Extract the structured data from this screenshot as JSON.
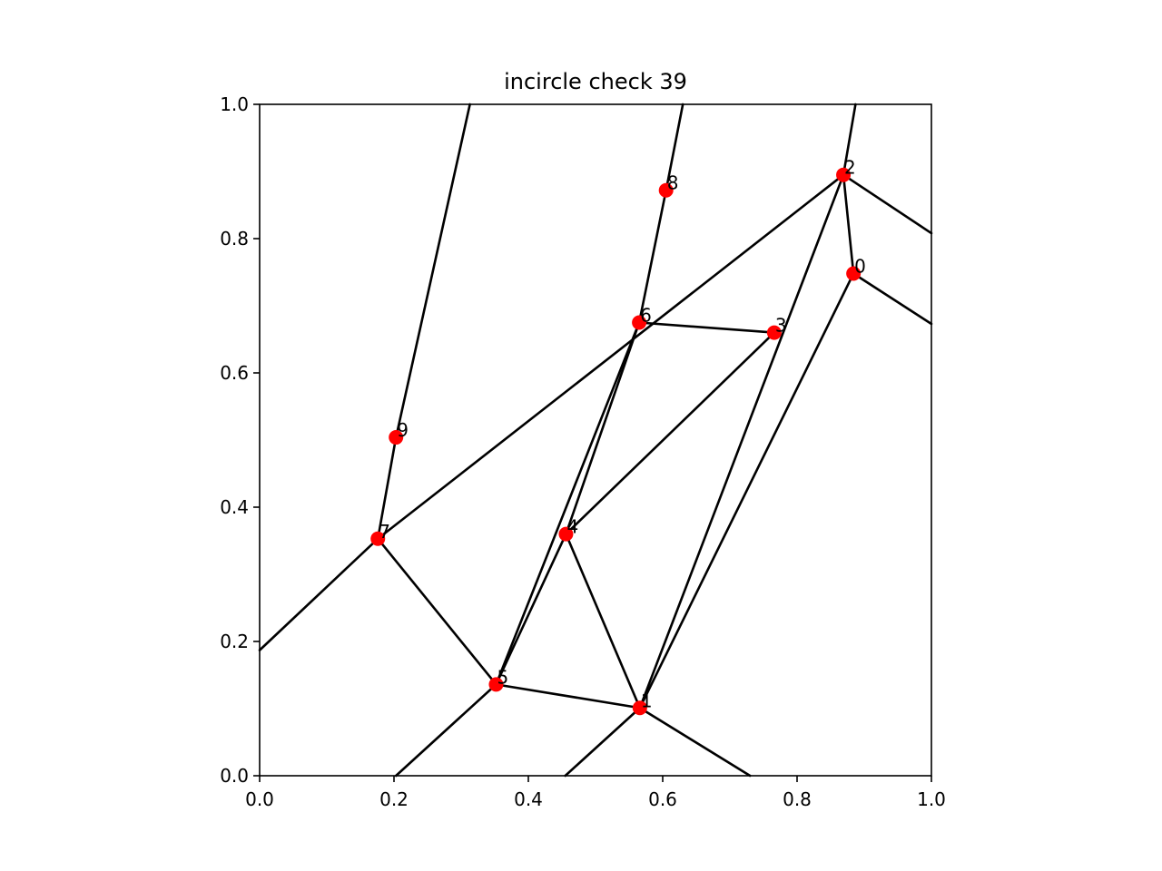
{
  "chart_data": {
    "type": "scatter",
    "title": "incircle check 39",
    "xlabel": "",
    "ylabel": "",
    "xlim": [
      0.0,
      1.0
    ],
    "ylim": [
      0.0,
      1.0
    ],
    "grid": false,
    "x_ticks": [
      "0.0",
      "0.2",
      "0.4",
      "0.6",
      "0.8",
      "1.0"
    ],
    "y_ticks": [
      "0.0",
      "0.2",
      "0.4",
      "0.6",
      "0.8",
      "1.0"
    ],
    "point_color": "#ff0000",
    "line_color": "#000000",
    "points": [
      {
        "label": "0",
        "x": 0.884,
        "y": 0.748
      },
      {
        "label": "1",
        "x": 0.566,
        "y": 0.101
      },
      {
        "label": "2",
        "x": 0.869,
        "y": 0.895
      },
      {
        "label": "3",
        "x": 0.766,
        "y": 0.66
      },
      {
        "label": "4",
        "x": 0.456,
        "y": 0.36
      },
      {
        "label": "5",
        "x": 0.352,
        "y": 0.136
      },
      {
        "label": "6",
        "x": 0.565,
        "y": 0.675
      },
      {
        "label": "7",
        "x": 0.176,
        "y": 0.353
      },
      {
        "label": "8",
        "x": 0.605,
        "y": 0.872
      },
      {
        "label": "9",
        "x": 0.203,
        "y": 0.504
      }
    ],
    "segments": [
      [
        0.176,
        0.353,
        0.869,
        0.895
      ],
      [
        0.869,
        0.895,
        0.884,
        0.748
      ],
      [
        0.884,
        0.748,
        0.566,
        0.101
      ],
      [
        0.566,
        0.101,
        0.352,
        0.136
      ],
      [
        0.352,
        0.136,
        0.176,
        0.353
      ],
      [
        0.565,
        0.675,
        0.766,
        0.66
      ],
      [
        0.766,
        0.66,
        0.456,
        0.36
      ],
      [
        0.456,
        0.36,
        0.565,
        0.675
      ],
      [
        0.565,
        0.675,
        0.352,
        0.136
      ],
      [
        0.352,
        0.136,
        0.456,
        0.36
      ],
      [
        0.456,
        0.36,
        0.566,
        0.101
      ],
      [
        0.566,
        0.101,
        0.869,
        0.895
      ],
      [
        0.176,
        0.353,
        0.203,
        0.504
      ],
      [
        0.203,
        0.504,
        0.313,
        1.0
      ],
      [
        0.176,
        0.353,
        0.0,
        0.187
      ],
      [
        0.352,
        0.136,
        0.203,
        0.0
      ],
      [
        0.566,
        0.101,
        0.455,
        0.0
      ],
      [
        0.566,
        0.101,
        0.73,
        0.0
      ],
      [
        0.565,
        0.675,
        0.605,
        0.872
      ],
      [
        0.605,
        0.872,
        0.63,
        1.0
      ],
      [
        0.869,
        0.895,
        0.887,
        1.0
      ],
      [
        0.869,
        0.895,
        1.0,
        0.808
      ],
      [
        0.884,
        0.748,
        1.0,
        0.673
      ]
    ]
  }
}
